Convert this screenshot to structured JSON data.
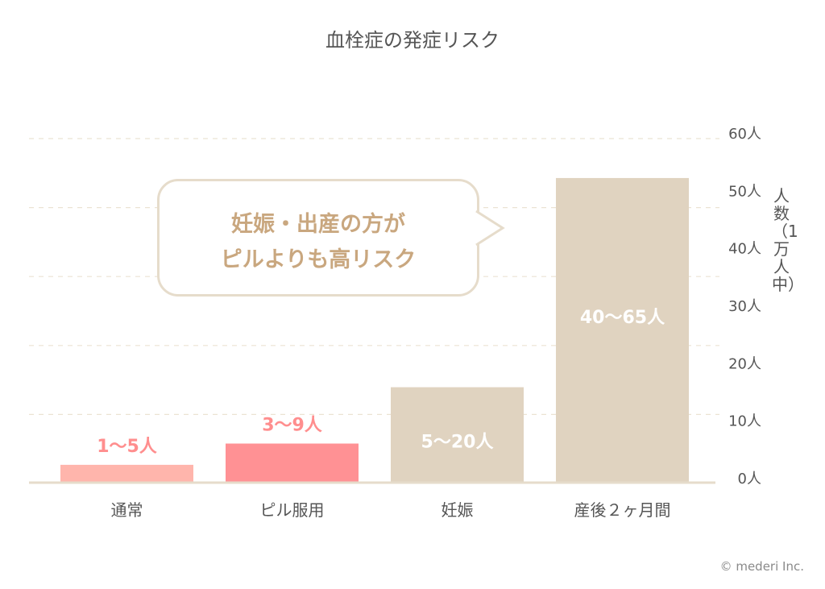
{
  "chart_data": {
    "type": "bar",
    "title": "血栓症の発症リスク",
    "categories": [
      "通常",
      "ピル服用",
      "妊娠",
      "産後２ヶ月間"
    ],
    "values": [
      3.1,
      6.8,
      16.6,
      53
    ],
    "value_labels": [
      "1〜5人",
      "3〜9人",
      "5〜20人",
      "40〜65人"
    ],
    "ylabel": "人数（1万人中）",
    "ylim": [
      0,
      60
    ],
    "yticks": [
      0,
      10,
      20,
      30,
      40,
      50,
      60
    ],
    "ytick_labels": [
      "0人",
      "10人",
      "20人",
      "30人",
      "40人",
      "50人",
      "60人"
    ],
    "gridlines": [
      12,
      24,
      36,
      48,
      60
    ],
    "grid": true,
    "bar_colors": [
      "#ffb5ac",
      "#ff9194",
      "#e0d3c0",
      "#e0d3c0"
    ],
    "label_colors": [
      "#ff8e8e",
      "#ff8e8e",
      "#ffffff",
      "#ffffff"
    ],
    "label_inside": [
      false,
      false,
      true,
      true
    ]
  },
  "callout": {
    "line1": "妊娠・出産の方が",
    "line2": "ピルよりも高リスク"
  },
  "credit": "© mederi Inc."
}
